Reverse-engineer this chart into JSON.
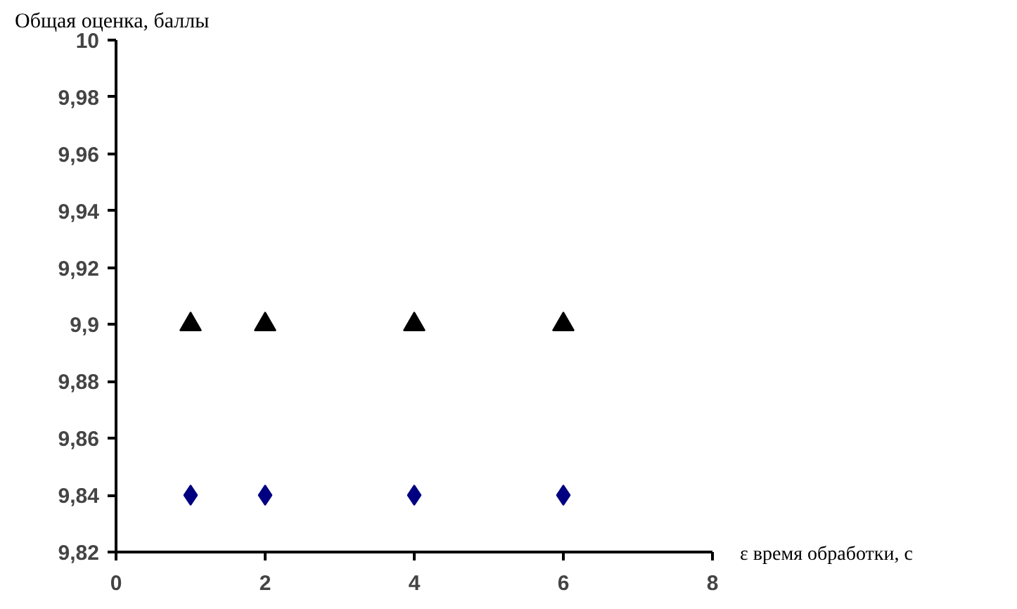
{
  "chart_data": {
    "type": "scatter",
    "xlabel": "ε время обработки, с",
    "ylabel": "Общая оценка, баллы",
    "x": [
      1,
      2,
      4,
      6
    ],
    "series": [
      {
        "color": "#000000",
        "marker": "triangle",
        "values": [
          9.9,
          9.9,
          9.9,
          9.9
        ]
      },
      {
        "color": "#000080",
        "marker": "diamond",
        "values": [
          9.84,
          9.84,
          9.84,
          9.84
        ]
      }
    ],
    "xlim": [
      0,
      8
    ],
    "xticks": [
      0,
      2,
      4,
      6,
      8
    ],
    "ylim": [
      9.82,
      10
    ],
    "yticks": [
      {
        "value": 9.82,
        "label": "9,82"
      },
      {
        "value": 9.84,
        "label": "9,84"
      },
      {
        "value": 9.86,
        "label": "9,86"
      },
      {
        "value": 9.88,
        "label": "9,88"
      },
      {
        "value": 9.9,
        "label": "9,9"
      },
      {
        "value": 9.92,
        "label": "9,92"
      },
      {
        "value": 9.94,
        "label": "9,94"
      },
      {
        "value": 9.96,
        "label": "9,96"
      },
      {
        "value": 9.98,
        "label": "9,98"
      },
      {
        "value": 10,
        "label": "10"
      }
    ],
    "grid": false
  }
}
